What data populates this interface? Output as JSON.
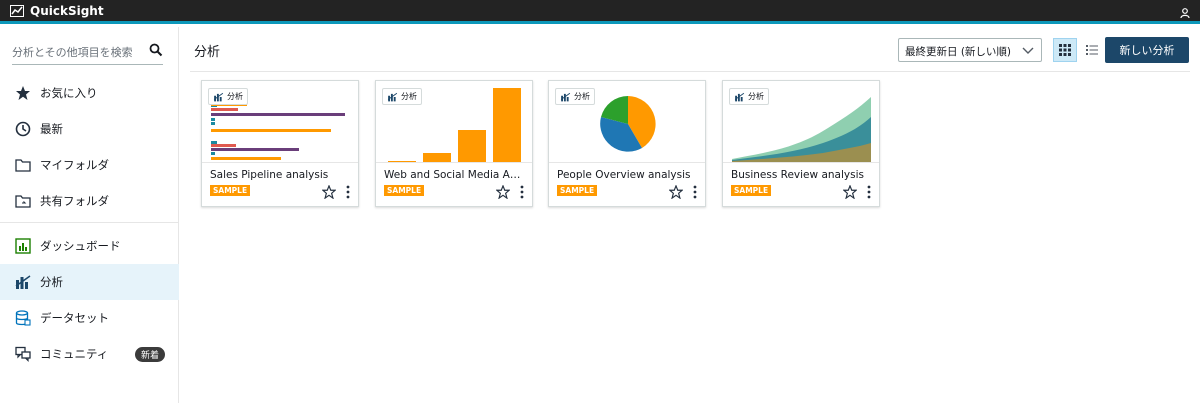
{
  "app": {
    "title": "QuickSight"
  },
  "sidebar": {
    "search_placeholder": "分析とその他項目を検索",
    "items": [
      {
        "label": "お気に入り",
        "icon": "star-icon"
      },
      {
        "label": "最新",
        "icon": "clock-icon"
      },
      {
        "label": "マイフォルダ",
        "icon": "folder-icon"
      },
      {
        "label": "共有フォルダ",
        "icon": "shared-folder-icon"
      },
      {
        "label": "ダッシュボード",
        "icon": "dashboard-icon"
      },
      {
        "label": "分析",
        "icon": "analysis-icon",
        "active": true
      },
      {
        "label": "データセット",
        "icon": "dataset-icon"
      },
      {
        "label": "コミュニティ",
        "icon": "community-icon",
        "badge": "新着"
      }
    ]
  },
  "main": {
    "title": "分析",
    "sort_label": "最終更新日 (新しい順)",
    "new_button": "新しい分析",
    "cards": [
      {
        "name": "Sales Pipeline analysis",
        "tag": "分析",
        "badge": "SAMPLE"
      },
      {
        "name": "Web and Social Media Analysis",
        "tag": "分析",
        "badge": "SAMPLE"
      },
      {
        "name": "People Overview analysis",
        "tag": "分析",
        "badge": "SAMPLE"
      },
      {
        "name": "Business Review analysis",
        "tag": "分析",
        "badge": "SAMPLE"
      }
    ]
  },
  "colors": {
    "accent": "#1c4769",
    "topbar": "#232323",
    "sample": "#ff9900",
    "active_bg": "#e6f3fa"
  }
}
